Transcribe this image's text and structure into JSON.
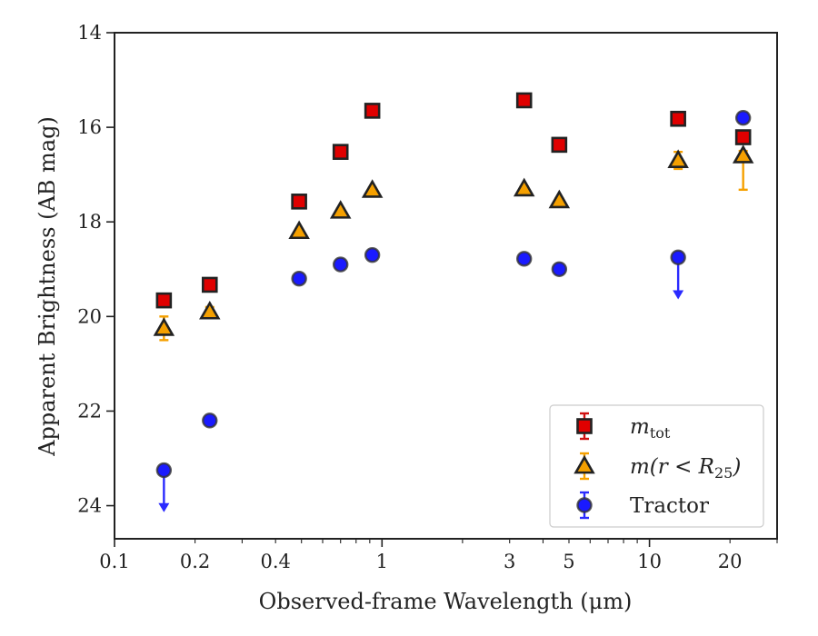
{
  "chart_data": {
    "type": "scatter",
    "xlabel": "Observed-frame Wavelength (μm)",
    "ylabel": "Apparent Brightness (AB mag)",
    "x_scale": "log",
    "xlim": [
      0.1,
      30
    ],
    "ylim": [
      24.7,
      14
    ],
    "y_inverted": true,
    "x_ticks": [
      {
        "value": 0.1,
        "label": "0.1"
      },
      {
        "value": 0.2,
        "label": "0.2"
      },
      {
        "value": 0.4,
        "label": "0.4"
      },
      {
        "value": 1,
        "label": "1"
      },
      {
        "value": 3,
        "label": "3"
      },
      {
        "value": 5,
        "label": "5"
      },
      {
        "value": 10,
        "label": "10"
      },
      {
        "value": 20,
        "label": "20"
      }
    ],
    "y_ticks": [
      {
        "value": 14,
        "label": "14"
      },
      {
        "value": 16,
        "label": "16"
      },
      {
        "value": 18,
        "label": "18"
      },
      {
        "value": 20,
        "label": "20"
      },
      {
        "value": 22,
        "label": "22"
      },
      {
        "value": 24,
        "label": "24"
      }
    ],
    "legend_position": "lower right",
    "series": [
      {
        "name": "m_tot",
        "marker": "square",
        "color": "#e00000",
        "edge_color": "#222222",
        "error_color": "#d01010",
        "points": [
          {
            "x": 0.153,
            "y": 19.66,
            "err": 0.08
          },
          {
            "x": 0.227,
            "y": 19.33,
            "err": 0.06
          },
          {
            "x": 0.49,
            "y": 17.57,
            "err": 0.05
          },
          {
            "x": 0.7,
            "y": 16.52,
            "err": 0.05
          },
          {
            "x": 0.92,
            "y": 15.65,
            "err": 0.05
          },
          {
            "x": 3.4,
            "y": 15.43,
            "err": 0.05
          },
          {
            "x": 4.6,
            "y": 16.37,
            "err": 0.05
          },
          {
            "x": 12.8,
            "y": 15.82,
            "err": 0.05
          },
          {
            "x": 22.4,
            "y": 16.21,
            "err": 0.05
          }
        ]
      },
      {
        "name": "m(r < R25)",
        "marker": "triangle",
        "color": "#f5a000",
        "edge_color": "#222222",
        "error_color": "#f5a000",
        "points": [
          {
            "x": 0.153,
            "y": 20.25,
            "err": 0.25
          },
          {
            "x": 0.227,
            "y": 19.9,
            "err": 0.1
          },
          {
            "x": 0.49,
            "y": 18.2,
            "err": 0.05
          },
          {
            "x": 0.7,
            "y": 17.77,
            "err": 0.05
          },
          {
            "x": 0.92,
            "y": 17.33,
            "err": 0.05
          },
          {
            "x": 3.4,
            "y": 17.3,
            "err": 0.05
          },
          {
            "x": 4.6,
            "y": 17.55,
            "err": 0.05
          },
          {
            "x": 12.8,
            "y": 16.7,
            "err": 0.18
          },
          {
            "x": 22.4,
            "y": 16.6,
            "err_up": 0.1,
            "err_down": 0.72
          }
        ]
      },
      {
        "name": "Tractor",
        "marker": "circle",
        "color": "#1a1aff",
        "edge_color": "#333333",
        "error_color": "#2a2aff",
        "points": [
          {
            "x": 0.153,
            "y": 23.25,
            "upper_limit": true
          },
          {
            "x": 0.227,
            "y": 22.2,
            "err": 0.08
          },
          {
            "x": 0.49,
            "y": 19.2,
            "err": 0.05
          },
          {
            "x": 0.7,
            "y": 18.9,
            "err": 0.05
          },
          {
            "x": 0.92,
            "y": 18.7,
            "err": 0.05
          },
          {
            "x": 3.4,
            "y": 18.78,
            "err": 0.05
          },
          {
            "x": 4.6,
            "y": 19.0,
            "err": 0.05
          },
          {
            "x": 12.8,
            "y": 18.75,
            "upper_limit": true
          },
          {
            "x": 22.4,
            "y": 15.8,
            "err": 0.1
          }
        ]
      }
    ],
    "legend": [
      {
        "label": "m",
        "sub": "tot",
        "italic": true
      },
      {
        "label": "m(r < R",
        "sub": "25",
        "tail": ")",
        "italic": true
      },
      {
        "label": "Tractor",
        "italic": false
      }
    ]
  }
}
